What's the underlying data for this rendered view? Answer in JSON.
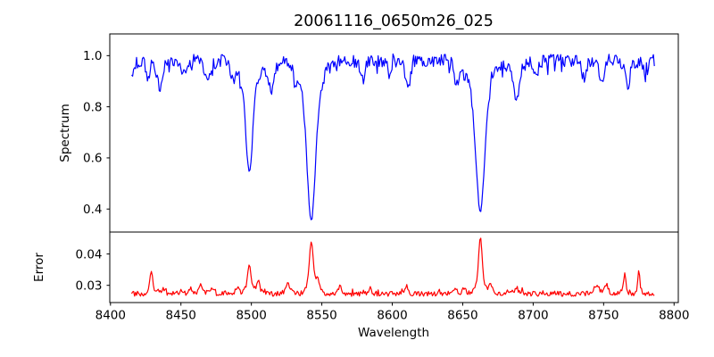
{
  "window": {
    "background": "#ffffff",
    "text_color": "#000000"
  },
  "chart_data": {
    "type": "line",
    "title": "20061116_0650m26_025",
    "xlabel": "Wavelength",
    "grid": false,
    "xlim": [
      8399.5,
      8803
    ],
    "xticks": [
      8400,
      8450,
      8500,
      8550,
      8600,
      8650,
      8700,
      8750,
      8800
    ],
    "xtick_labels": [
      "8400",
      "8450",
      "8500",
      "8550",
      "8600",
      "8650",
      "8700",
      "8750",
      "8800"
    ],
    "x_data_start": 8415,
    "x_data_end": 8786,
    "x_step": 0.7,
    "panels": [
      {
        "name": "spectrum",
        "ylabel": "Spectrum",
        "color": "#0000ff",
        "ylim": [
          0.31,
          1.085
        ],
        "yticks": [
          1.0,
          0.8,
          0.6,
          0.4
        ],
        "ytick_labels": [
          "1.0",
          "0.8",
          "0.6",
          "0.4"
        ],
        "continuum": 0.982,
        "noise": 0.05,
        "absorption_lines": [
          {
            "center": 8415.5,
            "min": 0.935,
            "sigma": 1.2
          },
          {
            "center": 8427,
            "min": 0.91,
            "sigma": 1.3
          },
          {
            "center": 8435,
            "min": 0.875,
            "sigma": 1.6
          },
          {
            "center": 8452,
            "min": 0.93,
            "sigma": 1.2
          },
          {
            "center": 8469,
            "min": 0.89,
            "sigma": 1.4
          },
          {
            "center": 8487,
            "min": 0.915,
            "sigma": 1.3
          },
          {
            "center": 8498.5,
            "min": 0.545,
            "sigma": 2.3
          },
          {
            "center": 8514,
            "min": 0.85,
            "sigma": 1.7
          },
          {
            "center": 8531,
            "min": 0.915,
            "sigma": 1.0
          },
          {
            "center": 8542.5,
            "min": 0.355,
            "sigma": 2.8
          },
          {
            "center": 8579,
            "min": 0.905,
            "sigma": 1.4
          },
          {
            "center": 8598,
            "min": 0.93,
            "sigma": 1.2
          },
          {
            "center": 8611,
            "min": 0.885,
            "sigma": 1.5
          },
          {
            "center": 8646,
            "min": 0.895,
            "sigma": 1.4
          },
          {
            "center": 8662.5,
            "min": 0.39,
            "sigma": 2.9
          },
          {
            "center": 8688,
            "min": 0.83,
            "sigma": 1.9
          },
          {
            "center": 8702,
            "min": 0.925,
            "sigma": 1.3
          },
          {
            "center": 8736,
            "min": 0.91,
            "sigma": 1.3
          },
          {
            "center": 8749,
            "min": 0.89,
            "sigma": 1.4
          },
          {
            "center": 8767,
            "min": 0.88,
            "sigma": 1.5
          },
          {
            "center": 8780,
            "min": 0.92,
            "sigma": 1.2
          }
        ]
      },
      {
        "name": "error",
        "ylabel": "Error",
        "color": "#ff0000",
        "ylim": [
          0.0245,
          0.047
        ],
        "yticks": [
          0.04,
          0.03
        ],
        "ytick_labels": [
          "0.04",
          "0.03"
        ],
        "baseline": 0.0273,
        "noise": 0.0016,
        "peaks": [
          {
            "center": 8429,
            "max": 0.0345,
            "sigma": 0.9
          },
          {
            "center": 8437,
            "max": 0.029,
            "sigma": 0.8
          },
          {
            "center": 8450,
            "max": 0.0285,
            "sigma": 0.8
          },
          {
            "center": 8457,
            "max": 0.029,
            "sigma": 0.8
          },
          {
            "center": 8464,
            "max": 0.03,
            "sigma": 1.0
          },
          {
            "center": 8472,
            "max": 0.0295,
            "sigma": 0.8
          },
          {
            "center": 8490,
            "max": 0.0295,
            "sigma": 0.9
          },
          {
            "center": 8498.5,
            "max": 0.0365,
            "sigma": 1.1
          },
          {
            "center": 8505,
            "max": 0.0315,
            "sigma": 0.9
          },
          {
            "center": 8526,
            "max": 0.031,
            "sigma": 1.0
          },
          {
            "center": 8542.5,
            "max": 0.0438,
            "sigma": 1.2
          },
          {
            "center": 8547,
            "max": 0.031,
            "sigma": 1.0
          },
          {
            "center": 8563,
            "max": 0.0295,
            "sigma": 1.0
          },
          {
            "center": 8584,
            "max": 0.0288,
            "sigma": 0.9
          },
          {
            "center": 8610,
            "max": 0.0292,
            "sigma": 0.9
          },
          {
            "center": 8645,
            "max": 0.029,
            "sigma": 0.9
          },
          {
            "center": 8651,
            "max": 0.029,
            "sigma": 0.8
          },
          {
            "center": 8662.5,
            "max": 0.0455,
            "sigma": 1.1
          },
          {
            "center": 8670,
            "max": 0.0302,
            "sigma": 1.2
          },
          {
            "center": 8688,
            "max": 0.0295,
            "sigma": 1.0
          },
          {
            "center": 8745,
            "max": 0.0298,
            "sigma": 1.5
          },
          {
            "center": 8752,
            "max": 0.0302,
            "sigma": 1.0
          },
          {
            "center": 8765,
            "max": 0.0336,
            "sigma": 0.7
          },
          {
            "center": 8775,
            "max": 0.0347,
            "sigma": 0.6
          }
        ]
      }
    ]
  }
}
